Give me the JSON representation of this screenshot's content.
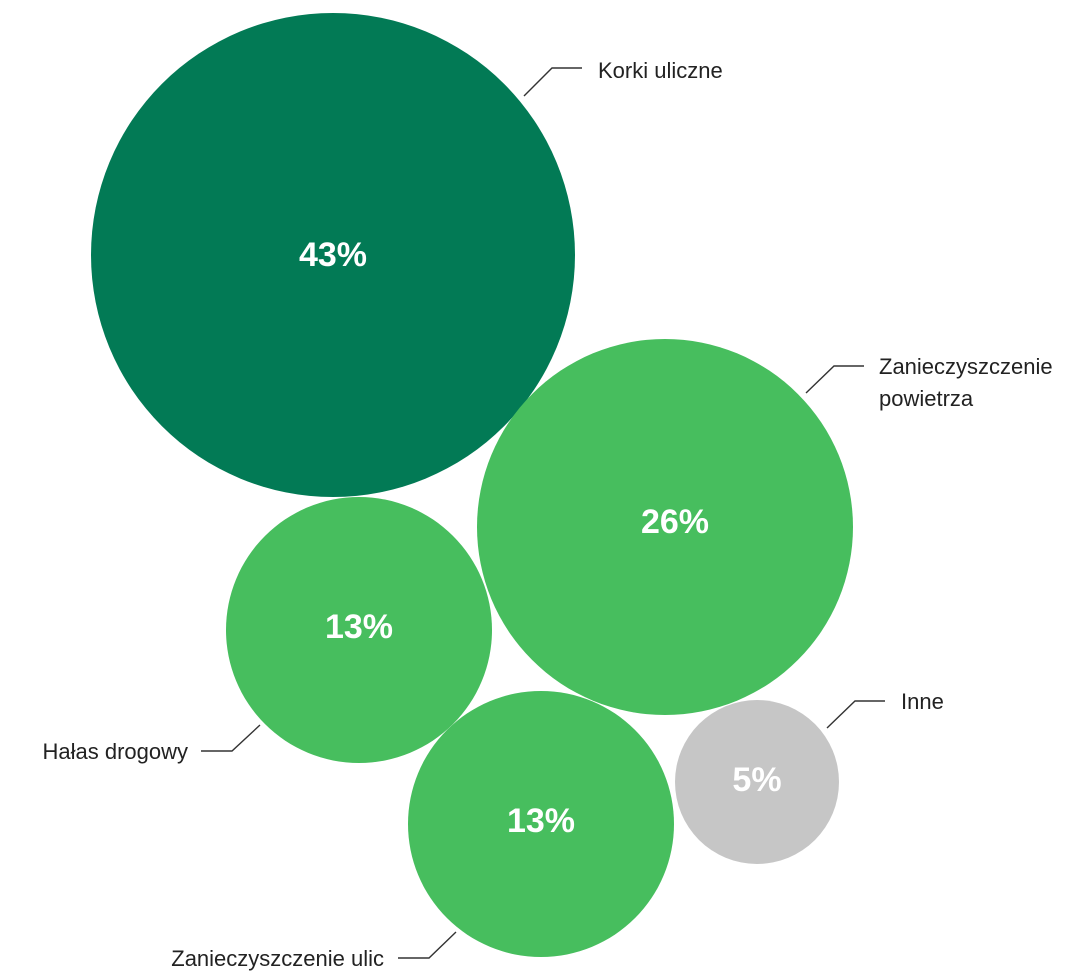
{
  "chart_data": {
    "type": "bubble",
    "title": "",
    "unit": "%",
    "series": [
      {
        "name": "Korki uliczne",
        "value": 43,
        "display": "43%",
        "color": "#027A55"
      },
      {
        "name": "Zanieczyszczenie powietrza",
        "value": 26,
        "display": "26%",
        "color": "#47BE5E"
      },
      {
        "name": "Hałas drogowy",
        "value": 13,
        "display": "13%",
        "color": "#47BE5E"
      },
      {
        "name": "Zanieczyszczenie ulic",
        "value": 13,
        "display": "13%",
        "color": "#47BE5E"
      },
      {
        "name": "Inne",
        "value": 5,
        "display": "5%",
        "color": "#C6C6C6"
      }
    ],
    "labels": [
      [
        "Korki uliczne"
      ],
      [
        "Zanieczyszczenie",
        "powietrza"
      ],
      [
        "Hałas drogowy"
      ],
      [
        "Zanieczyszczenie ulic"
      ],
      [
        "Inne"
      ]
    ],
    "legend": "none"
  }
}
